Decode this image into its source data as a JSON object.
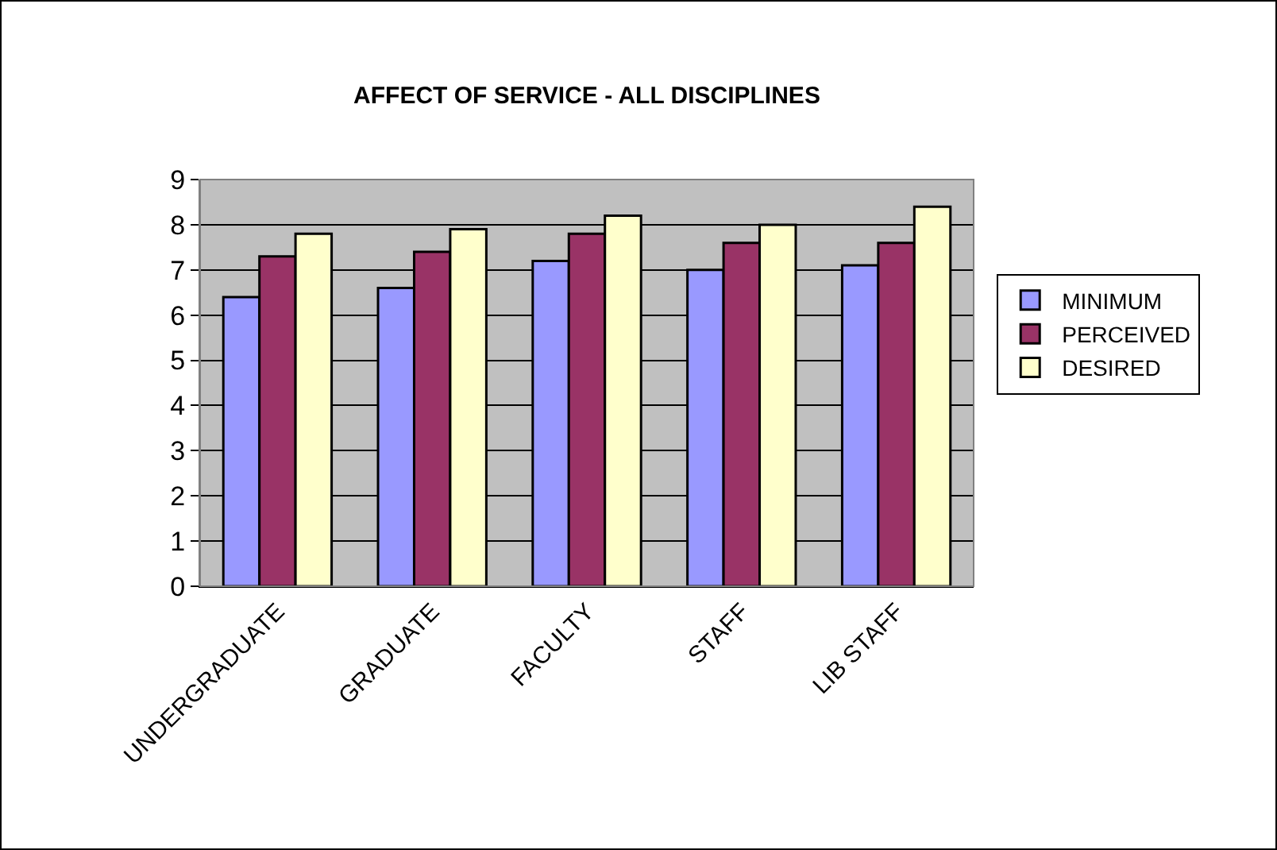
{
  "chart_data": {
    "type": "bar",
    "title": "AFFECT OF SERVICE - ALL DISCIPLINES",
    "categories": [
      "UNDERGRADUATE",
      "GRADUATE",
      "FACULTY",
      "STAFF",
      "LIB STAFF"
    ],
    "series": [
      {
        "name": "MINIMUM",
        "color": "#9999ff",
        "values": [
          6.4,
          6.6,
          7.2,
          7.0,
          7.1
        ]
      },
      {
        "name": "PERCEIVED",
        "color": "#993366",
        "values": [
          7.3,
          7.4,
          7.8,
          7.6,
          7.6
        ]
      },
      {
        "name": "DESIRED",
        "color": "#ffffcc",
        "values": [
          7.8,
          7.9,
          8.2,
          8.0,
          8.4
        ]
      }
    ],
    "ylim": [
      0,
      9
    ],
    "yticks": [
      0,
      1,
      2,
      3,
      4,
      5,
      6,
      7,
      8,
      9
    ],
    "grid": "y",
    "legend": "right"
  }
}
